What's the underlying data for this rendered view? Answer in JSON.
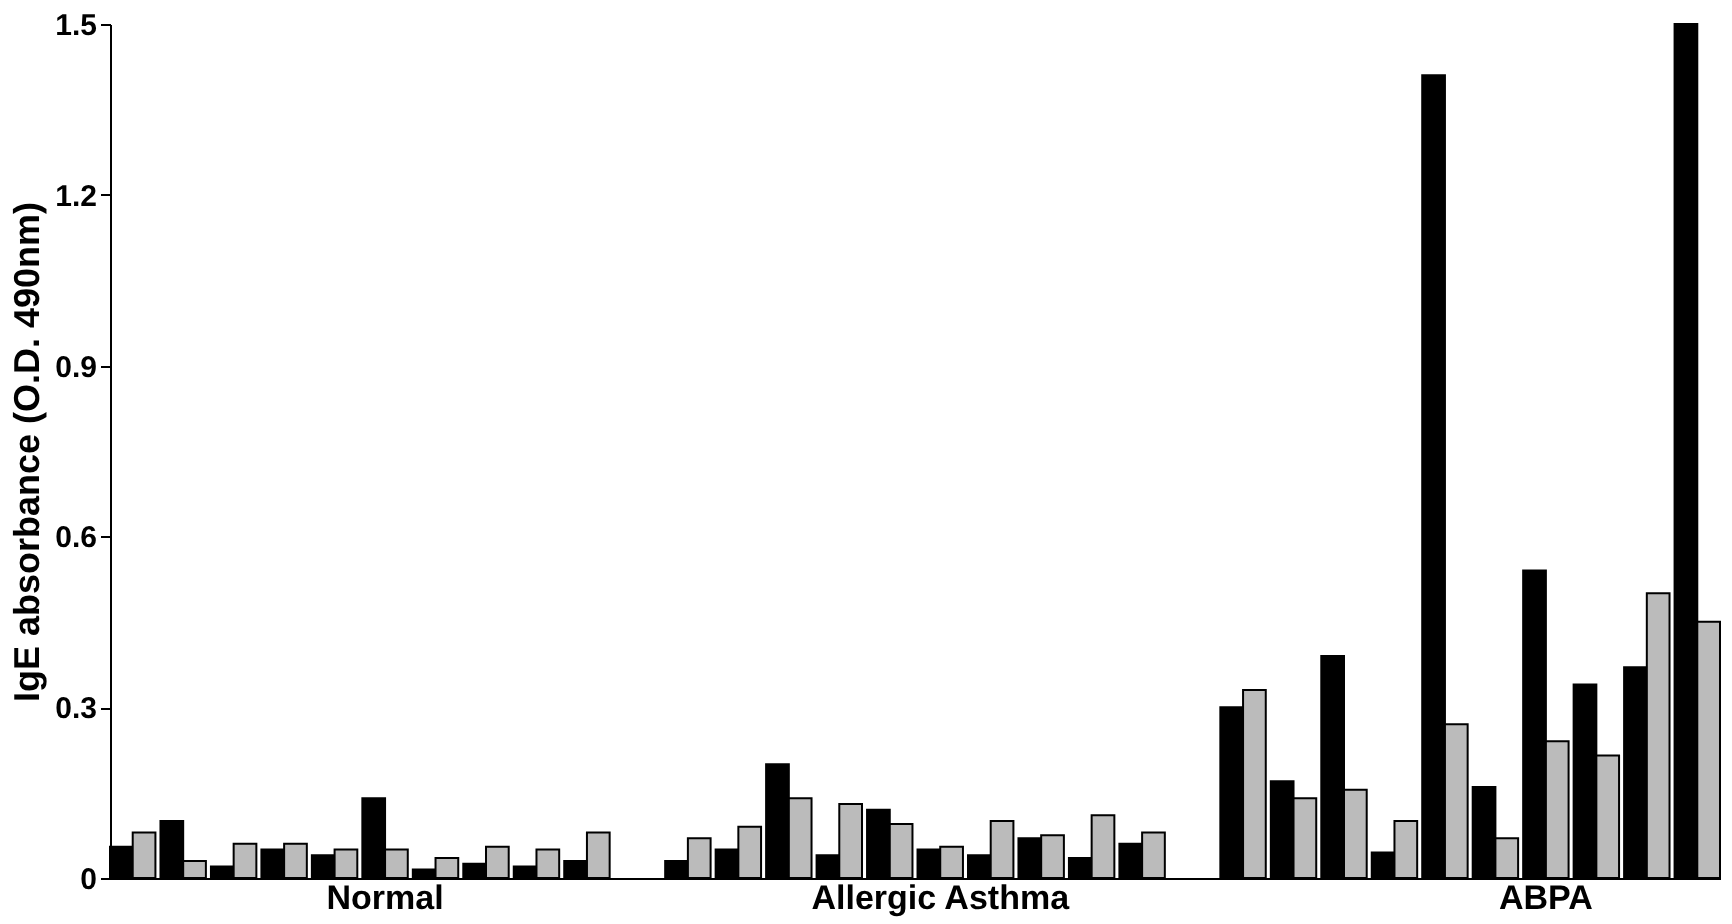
{
  "chart_data": {
    "type": "bar",
    "ylabel": "IgE absorbance (O.D. 490nm)",
    "categories": [
      null,
      null,
      null,
      null,
      null,
      "Normal",
      null,
      null,
      null,
      null,
      null,
      null,
      null,
      null,
      null,
      null,
      "Allergic Asthma",
      null,
      null,
      null,
      null,
      null,
      null,
      null,
      null,
      null,
      null,
      null,
      "ABPA",
      null,
      null,
      null
    ],
    "series": [
      {
        "color": "#000000",
        "values": [
          0.055,
          0.1,
          0.02,
          0.05,
          0.04,
          0.14,
          0.015,
          0.025,
          0.02,
          0.03,
          null,
          0.03,
          0.05,
          0.2,
          0.04,
          0.12,
          0.05,
          0.04,
          0.07,
          0.035,
          0.06,
          null,
          0.3,
          0.17,
          0.39,
          0.045,
          1.41,
          0.16,
          0.54,
          0.34,
          0.37,
          1.5
        ]
      },
      {
        "color": "#bbbbbb",
        "values": [
          0.08,
          0.03,
          0.06,
          0.06,
          0.05,
          0.05,
          0.035,
          0.055,
          0.05,
          0.08,
          null,
          0.07,
          0.09,
          0.14,
          0.13,
          0.095,
          0.055,
          0.1,
          0.075,
          0.11,
          0.08,
          null,
          0.33,
          0.14,
          0.155,
          0.1,
          0.27,
          0.07,
          0.24,
          0.215,
          0.5,
          0.45
        ]
      }
    ],
    "ylim": [
      0,
      1.5
    ],
    "yticks": [
      0,
      0.3,
      0.6,
      0.9,
      1.2,
      1.5
    ],
    "grid": false
  }
}
